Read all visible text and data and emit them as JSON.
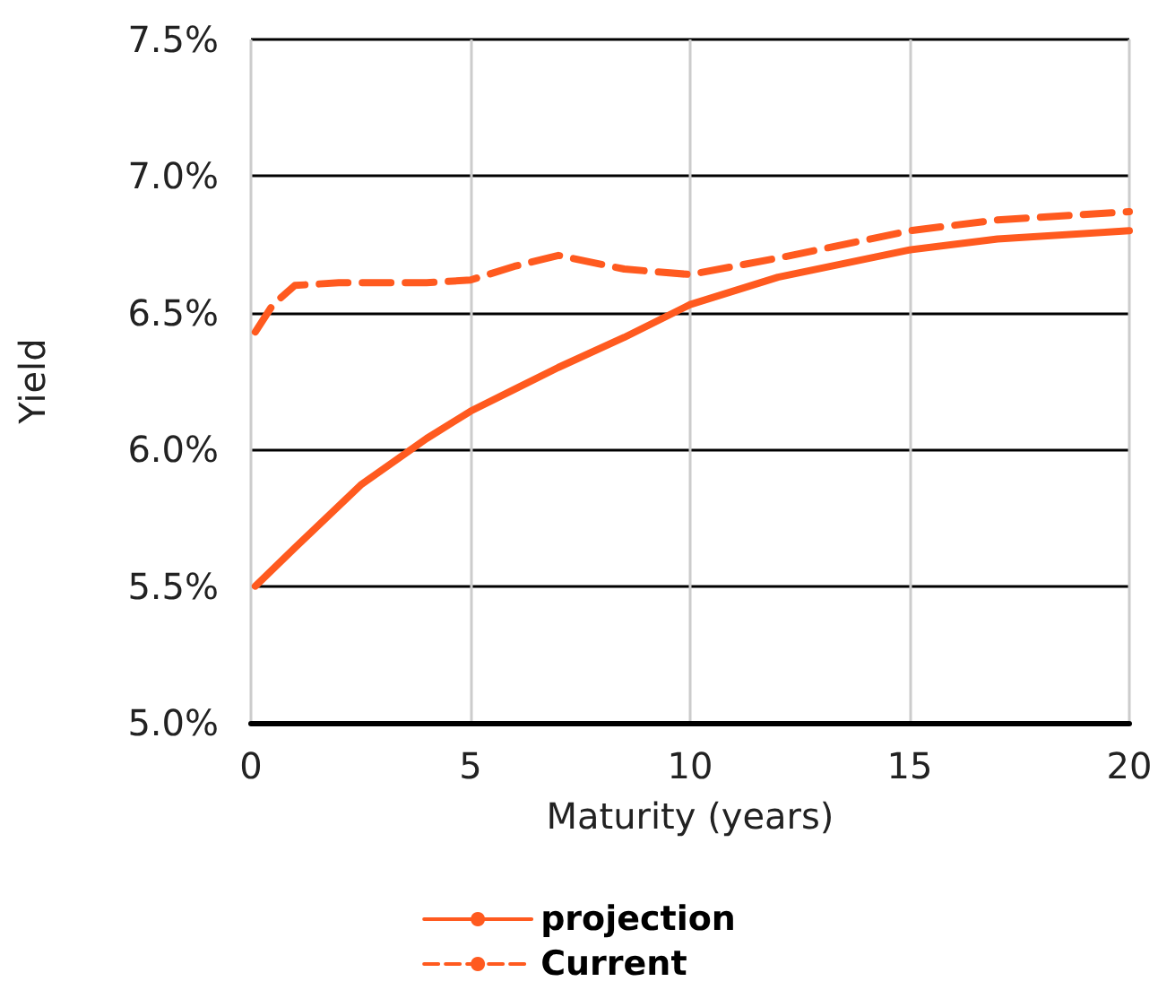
{
  "chart_data": {
    "type": "line",
    "xlabel": "Maturity (years)",
    "ylabel": "Yield",
    "xlim": [
      0,
      20
    ],
    "xticks": [
      0,
      5,
      10,
      15,
      20
    ],
    "ylim": [
      5.0,
      7.5
    ],
    "yticks": [
      {
        "value": 5.0,
        "label": "5.0%"
      },
      {
        "value": 5.5,
        "label": "5.5%"
      },
      {
        "value": 6.0,
        "label": "6.0%"
      },
      {
        "value": 6.5,
        "label": "6.5%"
      },
      {
        "value": 7.0,
        "label": "7.0%"
      },
      {
        "value": 7.5,
        "label": "7.5%"
      }
    ],
    "grid": true,
    "legend": "bottom",
    "marker": "none",
    "series": [
      {
        "name": "projection",
        "color": "#ff5a1f",
        "line_style": "solid",
        "x": [
          0.1,
          1,
          2.5,
          4,
          5,
          6,
          7,
          8.5,
          10,
          12,
          15,
          17,
          20
        ],
        "values": [
          5.5,
          5.64,
          5.87,
          6.04,
          6.14,
          6.22,
          6.3,
          6.41,
          6.53,
          6.63,
          6.73,
          6.77,
          6.8
        ]
      },
      {
        "name": "Current",
        "color": "#ff5a1f",
        "line_style": "dashed",
        "x": [
          0.1,
          0.5,
          1,
          2,
          3,
          4,
          5,
          6,
          7,
          8.5,
          10,
          12,
          15,
          17,
          20
        ],
        "values": [
          6.43,
          6.53,
          6.6,
          6.61,
          6.61,
          6.61,
          6.62,
          6.67,
          6.71,
          6.66,
          6.64,
          6.7,
          6.8,
          6.84,
          6.87
        ]
      }
    ]
  }
}
